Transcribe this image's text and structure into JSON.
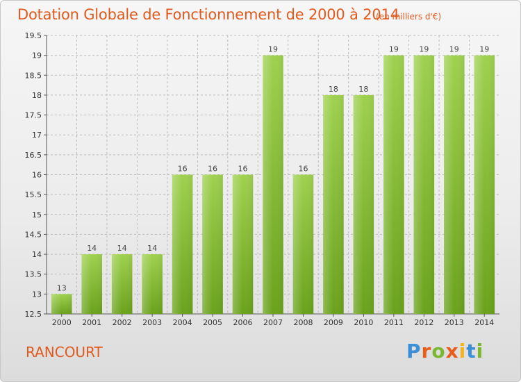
{
  "header": {
    "title": "Dotation Globale de Fonctionnement de 2000 à 2014",
    "unit": "(en milliers d'€)"
  },
  "footer": {
    "commune": "RANCOURT",
    "logo_parts": [
      "P",
      "r",
      "o",
      "x",
      "i",
      "t",
      "i"
    ]
  },
  "colors": {
    "title": "#e05a1e",
    "bar_top": "#9fd14f",
    "bar_bottom": "#6aa21c",
    "grid": "#bbbbbb"
  },
  "chart_data": {
    "type": "bar",
    "title": "Dotation Globale de Fonctionnement de 2000 à 2014",
    "subtitle": "(en milliers d'€)",
    "xlabel": "",
    "ylabel": "",
    "categories": [
      "2000",
      "2001",
      "2002",
      "2003",
      "2004",
      "2005",
      "2006",
      "2007",
      "2008",
      "2009",
      "2010",
      "2011",
      "2012",
      "2013",
      "2014"
    ],
    "values": [
      13,
      14,
      14,
      14,
      16,
      16,
      16,
      19,
      16,
      18,
      18,
      19,
      19,
      19,
      19
    ],
    "value_labels": [
      "13",
      "14",
      "14",
      "14",
      "16",
      "16",
      "16",
      "19",
      "16",
      "18",
      "18",
      "19",
      "19",
      "19",
      "19"
    ],
    "ylim": [
      12.5,
      19.5
    ],
    "yticks": [
      12.5,
      13,
      13.5,
      14,
      14.5,
      15,
      15.5,
      16,
      16.5,
      17,
      17.5,
      18,
      18.5,
      19,
      19.5
    ],
    "ytick_labels": [
      "12.5",
      "13",
      "13.5",
      "14",
      "14.5",
      "15",
      "15.5",
      "16",
      "16.5",
      "17",
      "17.5",
      "18",
      "18.5",
      "19",
      "19.5"
    ],
    "grid": true,
    "legend": "none"
  }
}
